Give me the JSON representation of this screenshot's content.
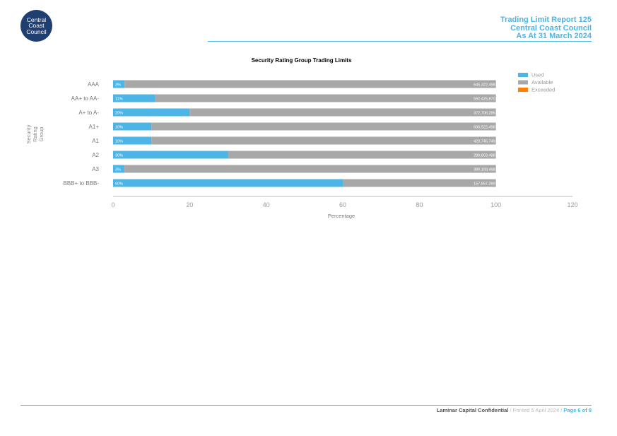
{
  "logo": {
    "line1": "Central",
    "line2": "Coast",
    "line3": "Council"
  },
  "header": {
    "line1": "Trading Limit Report 125",
    "line2": "Central Coast Council",
    "line3": "As At 31 March 2024"
  },
  "colors": {
    "used": "#4cb5e6",
    "available": "#a8a8a8",
    "exceeded": "#ff8000",
    "accent": "#4cb5e6"
  },
  "chart_data": {
    "type": "bar",
    "orientation": "horizontal",
    "stacked": true,
    "title": "Security Rating Group Trading Limits",
    "xlabel": "Percentage",
    "ylabel": "Security Rating Group",
    "xlim": [
      0,
      120
    ],
    "xticks": [
      "0",
      "20",
      "40",
      "60",
      "80",
      "100",
      "120"
    ],
    "legend_position": "top-right",
    "categories": [
      "AAA",
      "AA+ to AA-",
      "A+ to A-",
      "A1+",
      "A1",
      "A2",
      "A3",
      "BBB+ to BBB-"
    ],
    "series": [
      {
        "name": "Used",
        "values": [
          3,
          11,
          20,
          10,
          10,
          30,
          3,
          60
        ]
      },
      {
        "name": "Available",
        "values": [
          97,
          89,
          80,
          90,
          90,
          70,
          97,
          40
        ]
      },
      {
        "name": "Exceeded",
        "values": [
          0,
          0,
          0,
          0,
          0,
          0,
          0,
          0
        ]
      }
    ],
    "used_labels": [
      "3%",
      "11%",
      "20%",
      "10%",
      "10%",
      "30%",
      "3%",
      "60%"
    ],
    "available_labels": [
      "645,322,498",
      "592,425,870",
      "372,706,286",
      "600,522,498",
      "420,745,749",
      "280,803,498",
      "389,193,498",
      "157,957,299"
    ]
  },
  "footer": {
    "confidential": "Laminar Capital Confidential",
    "sep1": " / ",
    "printed": "Printed 5 April 2024",
    "sep2": " / ",
    "page": "Page 6 of 8"
  }
}
